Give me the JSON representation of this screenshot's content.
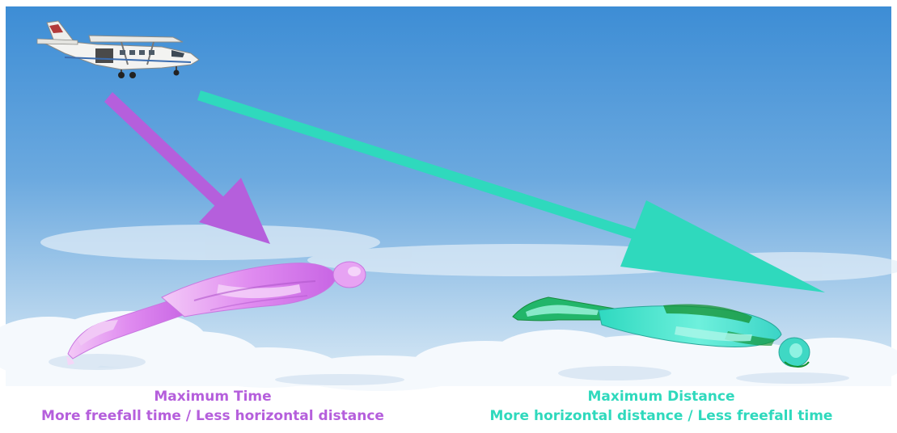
{
  "colors": {
    "time_accent": "#b55fdc",
    "distance_accent": "#2fd9bd",
    "sky_top": "#3e8fd6",
    "sky_bottom": "#cfe4f4",
    "cloud": "#f4f8fc",
    "time_body": "#e49bf2",
    "distance_body": "#43e6cf",
    "distance_body_shade": "#13902f"
  },
  "icons": {
    "aircraft": "skydiving-aircraft",
    "time_arrow": "steep-descent-arrow",
    "distance_arrow": "shallow-glide-arrow",
    "time_figure": "skydiver-body-position",
    "distance_figure": "skydiver-body-position"
  },
  "captions": {
    "time": {
      "title": "Maximum Time",
      "subtitle": "More freefall time / Less horizontal distance"
    },
    "distance": {
      "title": "Maximum Distance",
      "subtitle": "More horizontal distance / Less freefall time"
    }
  }
}
